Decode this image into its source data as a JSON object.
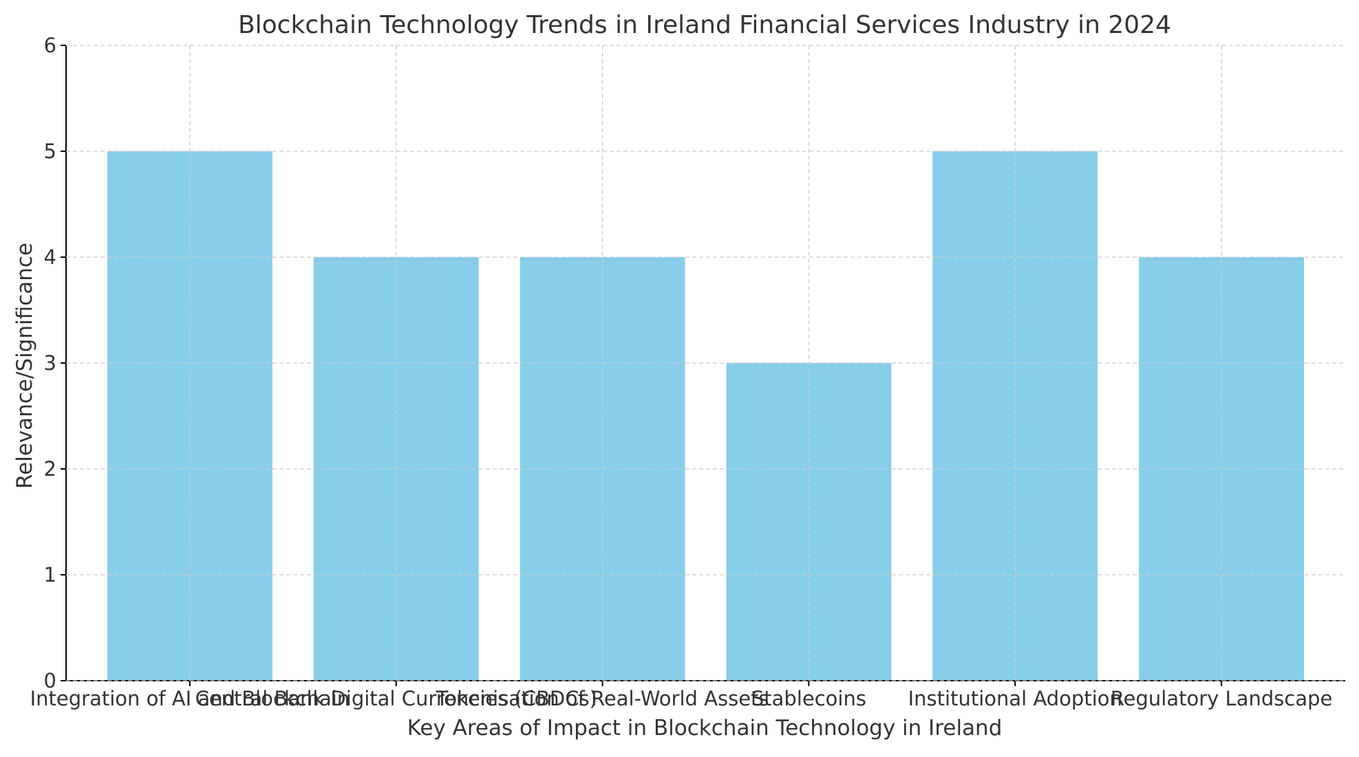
{
  "chart_data": {
    "type": "bar",
    "title": "Blockchain Technology Trends in Ireland Financial Services Industry in 2024",
    "xlabel": "Key Areas of Impact in Blockchain Technology in Ireland",
    "ylabel": "Relevance/Significance",
    "categories": [
      "Integration of AI and Blockchain",
      "Central Bank Digital Currencies (CBDCs)",
      "Tokenisation of Real-World Assets",
      "Stablecoins",
      "Institutional Adoption",
      "Regulatory Landscape"
    ],
    "values": [
      5,
      4,
      4,
      3,
      5,
      4
    ],
    "ylim": [
      0,
      6
    ],
    "yticks": [
      "0",
      "1",
      "2",
      "3",
      "4",
      "5",
      "6"
    ],
    "grid": true,
    "bar_color": "#87CEEB",
    "grid_color": "#cccccc",
    "axis_color": "#000000",
    "text_color": "#333333"
  }
}
